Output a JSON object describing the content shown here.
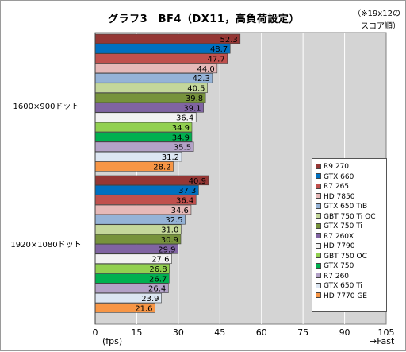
{
  "title": "グラフ3　BF4（DX11，高負荷設定）",
  "note_line1": "（※19x12の",
  "note_line2": "スコア順）",
  "y_unit": "(fps)",
  "fast_label": "→Fast",
  "chart_data": {
    "type": "bar",
    "orientation": "horizontal",
    "categories": [
      "1600×900ドット",
      "1920×1080ドット"
    ],
    "xlim": [
      0,
      105
    ],
    "x_ticks": [
      "0",
      "15",
      "30",
      "45",
      "60",
      "75",
      "90",
      "105"
    ],
    "grid": true,
    "legend_position": "bottom-right",
    "series": [
      {
        "name": "R9 270",
        "color": "#953735",
        "values": [
          52.3,
          40.9
        ]
      },
      {
        "name": "GTX 660",
        "color": "#0070c0",
        "values": [
          48.7,
          37.3
        ]
      },
      {
        "name": "R7 265",
        "color": "#c0504d",
        "values": [
          47.7,
          36.4
        ]
      },
      {
        "name": "HD 7850",
        "color": "#e6b9b8",
        "values": [
          44.0,
          34.6
        ]
      },
      {
        "name": "GTX 650 TiB",
        "color": "#95b3d7",
        "values": [
          42.3,
          32.5
        ]
      },
      {
        "name": "GBT 750 Ti OC",
        "color": "#c4d79b",
        "values": [
          40.5,
          31.0
        ]
      },
      {
        "name": "GTX 750 Ti",
        "color": "#77933c",
        "values": [
          39.8,
          30.9
        ]
      },
      {
        "name": "R7 260X",
        "color": "#8064a2",
        "values": [
          39.1,
          29.9
        ]
      },
      {
        "name": "HD 7790",
        "color": "#f2f2f2",
        "values": [
          36.4,
          27.6
        ]
      },
      {
        "name": "GBT 750 OC",
        "color": "#92d050",
        "values": [
          34.9,
          26.8
        ]
      },
      {
        "name": "GTX 750",
        "color": "#00b050",
        "values": [
          34.9,
          26.7
        ]
      },
      {
        "name": "R7 260",
        "color": "#b3a2c7",
        "values": [
          35.5,
          26.4
        ]
      },
      {
        "name": "GTX 650 Ti",
        "color": "#dce6f2",
        "values": [
          31.2,
          23.9
        ]
      },
      {
        "name": "HD 7770 GE",
        "color": "#f79646",
        "values": [
          28.2,
          21.6
        ]
      }
    ]
  }
}
